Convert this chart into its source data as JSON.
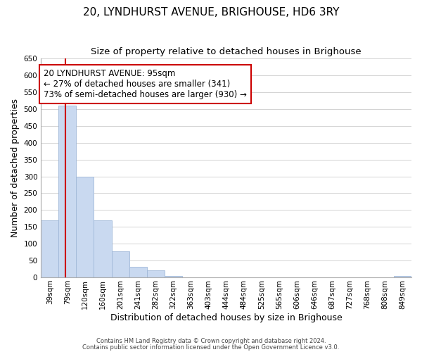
{
  "title": "20, LYNDHURST AVENUE, BRIGHOUSE, HD6 3RY",
  "subtitle": "Size of property relative to detached houses in Brighouse",
  "xlabel": "Distribution of detached houses by size in Brighouse",
  "ylabel": "Number of detached properties",
  "bin_labels": [
    "39sqm",
    "79sqm",
    "120sqm",
    "160sqm",
    "201sqm",
    "241sqm",
    "282sqm",
    "322sqm",
    "363sqm",
    "403sqm",
    "444sqm",
    "484sqm",
    "525sqm",
    "565sqm",
    "606sqm",
    "646sqm",
    "687sqm",
    "727sqm",
    "768sqm",
    "808sqm",
    "849sqm"
  ],
  "bar_values": [
    170,
    510,
    300,
    170,
    78,
    32,
    20,
    5,
    0,
    0,
    0,
    0,
    0,
    0,
    0,
    0,
    0,
    0,
    0,
    0,
    5
  ],
  "bar_color": "#c9d9f0",
  "bar_edgecolor": "#a0b8d8",
  "property_line_color": "#cc0000",
  "annotation_line1": "20 LYNDHURST AVENUE: 95sqm",
  "annotation_line2": "← 27% of detached houses are smaller (341)",
  "annotation_line3": "73% of semi-detached houses are larger (930) →",
  "annotation_box_edgecolor": "#cc0000",
  "ylim": [
    0,
    650
  ],
  "yticks": [
    0,
    50,
    100,
    150,
    200,
    250,
    300,
    350,
    400,
    450,
    500,
    550,
    600,
    650
  ],
  "background_color": "#ffffff",
  "grid_color": "#cccccc",
  "footer_line1": "Contains HM Land Registry data © Crown copyright and database right 2024.",
  "footer_line2": "Contains public sector information licensed under the Open Government Licence v3.0.",
  "title_fontsize": 11,
  "subtitle_fontsize": 9.5,
  "axis_label_fontsize": 9,
  "tick_fontsize": 7.5,
  "annotation_fontsize": 8.5
}
